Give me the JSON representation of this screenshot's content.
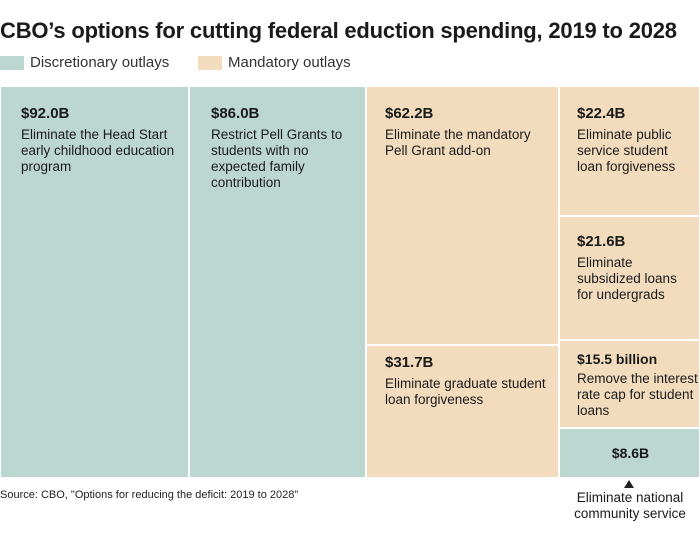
{
  "title": "CBO’s options for cutting federal eduction spending, 2019 to 2028",
  "source": "Source: CBO, \"Options for reducing the deficit: 2019 to 2028\"",
  "colors": {
    "discretionary": "#bcd7d0",
    "mandatory": "#f3dcbd"
  },
  "chart_data": {
    "type": "treemap",
    "title": "CBO’s options for cutting federal eduction spending, 2019 to 2028",
    "unit": "billions of dollars",
    "legend": [
      {
        "name": "Discretionary outlays",
        "color": "#bcd7d0"
      },
      {
        "name": "Mandatory outlays",
        "color": "#f3dcbd"
      }
    ],
    "items": [
      {
        "category": "Discretionary outlays",
        "value": 92.0,
        "value_label": "$92.0B",
        "label": "Eliminate the Head Start early childhood education program"
      },
      {
        "category": "Discretionary outlays",
        "value": 86.0,
        "value_label": "$86.0B",
        "label": "Restrict Pell Grants to students with no expected family contribution"
      },
      {
        "category": "Mandatory outlays",
        "value": 62.2,
        "value_label": "$62.2B",
        "label": "Eliminate the mandatory Pell Grant add-on"
      },
      {
        "category": "Mandatory outlays",
        "value": 31.7,
        "value_label": "$31.7B",
        "label": "Eliminate graduate student loan forgiveness"
      },
      {
        "category": "Mandatory outlays",
        "value": 22.4,
        "value_label": "$22.4B",
        "label": "Eliminate public service student loan forgiveness"
      },
      {
        "category": "Mandatory outlays",
        "value": 21.6,
        "value_label": "$21.6B",
        "label": "Eliminate subsidized loans for undergrads"
      },
      {
        "category": "Mandatory outlays",
        "value": 15.5,
        "value_label": "$15.5 billion",
        "label": "Remove the interest rate cap for student loans"
      },
      {
        "category": "Discretionary outlays",
        "value": 8.6,
        "value_label": "$8.6B",
        "label": "Eliminate national community service"
      }
    ]
  }
}
